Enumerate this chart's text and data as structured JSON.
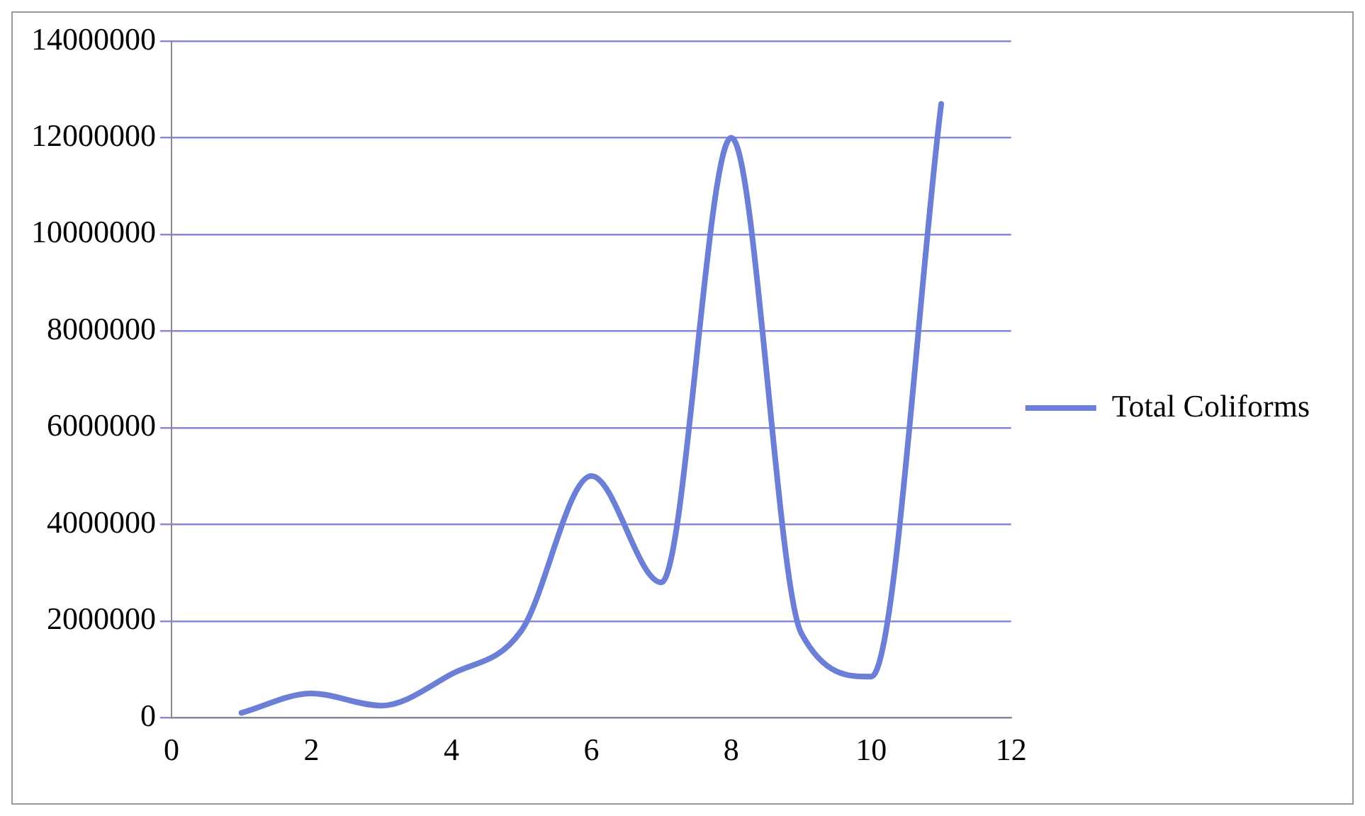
{
  "chart_data": {
    "type": "line",
    "x": [
      1,
      2,
      3,
      4,
      5,
      6,
      7,
      8,
      9,
      10,
      11
    ],
    "series": [
      {
        "name": "Total Coliforms",
        "color": "#6b7fd6",
        "values": [
          100000,
          500000,
          250000,
          900000,
          1800000,
          5000000,
          2800000,
          12000000,
          1750000,
          850000,
          12700000
        ]
      }
    ],
    "xlim": [
      0,
      12
    ],
    "xticks": [
      0,
      2,
      4,
      6,
      8,
      10,
      12
    ],
    "ylim": [
      0,
      14000000
    ],
    "yticks": [
      0,
      2000000,
      4000000,
      6000000,
      8000000,
      10000000,
      12000000,
      14000000
    ],
    "grid": "y",
    "legend": "right",
    "marker": "none",
    "line_style": "solid"
  }
}
